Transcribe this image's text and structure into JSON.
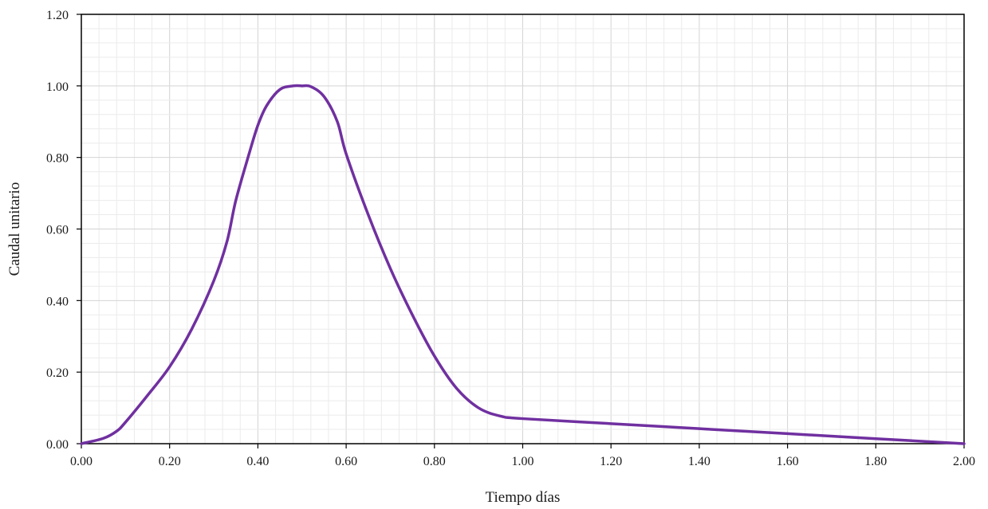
{
  "chart_data": {
    "type": "line",
    "xlabel": "Tiempo días",
    "ylabel": "Caudal unitario",
    "xlim": [
      0,
      2
    ],
    "ylim": [
      0,
      1.2
    ],
    "x_ticks": [
      "0.00",
      "0.20",
      "0.40",
      "0.60",
      "0.80",
      "1.00",
      "1.20",
      "1.40",
      "1.60",
      "1.80",
      "2.00"
    ],
    "y_ticks": [
      "0.00",
      "0.20",
      "0.40",
      "0.60",
      "0.80",
      "1.00",
      "1.20"
    ],
    "grid": true,
    "legend": "none",
    "series": [
      {
        "color": "#7030a0",
        "x": [
          0.0,
          0.05,
          0.08,
          0.1,
          0.15,
          0.2,
          0.25,
          0.3,
          0.33,
          0.35,
          0.38,
          0.4,
          0.42,
          0.45,
          0.48,
          0.5,
          0.52,
          0.55,
          0.58,
          0.6,
          0.65,
          0.7,
          0.75,
          0.8,
          0.85,
          0.9,
          0.95,
          1.0,
          1.2,
          1.4,
          1.6,
          1.8,
          2.0
        ],
        "y": [
          0.0,
          0.015,
          0.035,
          0.06,
          0.135,
          0.215,
          0.32,
          0.455,
          0.565,
          0.68,
          0.81,
          0.89,
          0.945,
          0.99,
          1.0,
          1.0,
          0.998,
          0.97,
          0.9,
          0.81,
          0.64,
          0.49,
          0.36,
          0.245,
          0.155,
          0.1,
          0.077,
          0.07,
          0.056,
          0.042,
          0.028,
          0.014,
          0.0
        ]
      }
    ]
  }
}
